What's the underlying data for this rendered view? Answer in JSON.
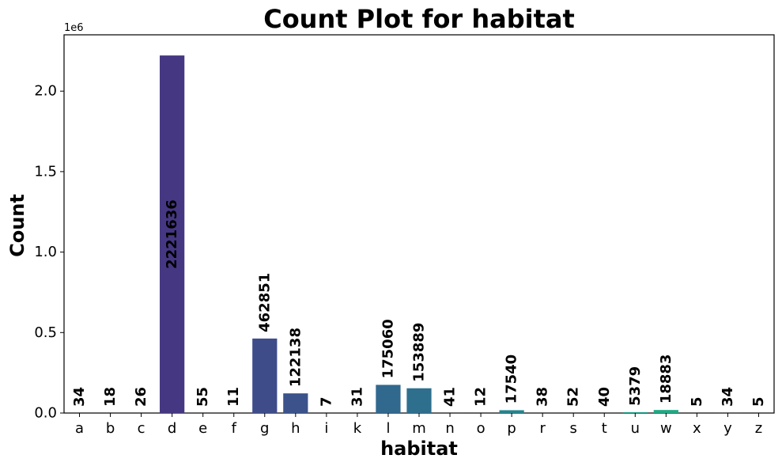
{
  "chart_data": {
    "type": "bar",
    "title": "Count Plot for habitat",
    "xlabel": "habitat",
    "ylabel": "Count",
    "y_offset_label": "1e6",
    "ylim": [
      0,
      2350000
    ],
    "y_ticks": [
      0,
      500000,
      1000000,
      1500000,
      2000000
    ],
    "y_tick_labels": [
      "0.0",
      "0.5",
      "1.0",
      "1.5",
      "2.0"
    ],
    "grid": false,
    "categories": [
      "a",
      "b",
      "c",
      "d",
      "e",
      "f",
      "g",
      "h",
      "i",
      "k",
      "l",
      "m",
      "n",
      "o",
      "p",
      "r",
      "s",
      "t",
      "u",
      "w",
      "x",
      "y",
      "z"
    ],
    "values": [
      34,
      18,
      26,
      2221636,
      55,
      11,
      462851,
      122138,
      7,
      31,
      175060,
      153889,
      41,
      12,
      17540,
      38,
      52,
      40,
      5379,
      18883,
      5,
      34,
      5
    ],
    "colors": [
      "#481a6c",
      "#482173",
      "#472a7a",
      "#453781",
      "#433e85",
      "#404688",
      "#3e4c8a",
      "#3b528b",
      "#375a8c",
      "#345f8d",
      "#31688e",
      "#2e6f8e",
      "#2b748e",
      "#287d8e",
      "#25848e",
      "#228b8d",
      "#1f938c",
      "#1e9b8a",
      "#1fa088",
      "#22a884",
      "#2ab07f",
      "#35b779",
      "#44bf70"
    ]
  }
}
